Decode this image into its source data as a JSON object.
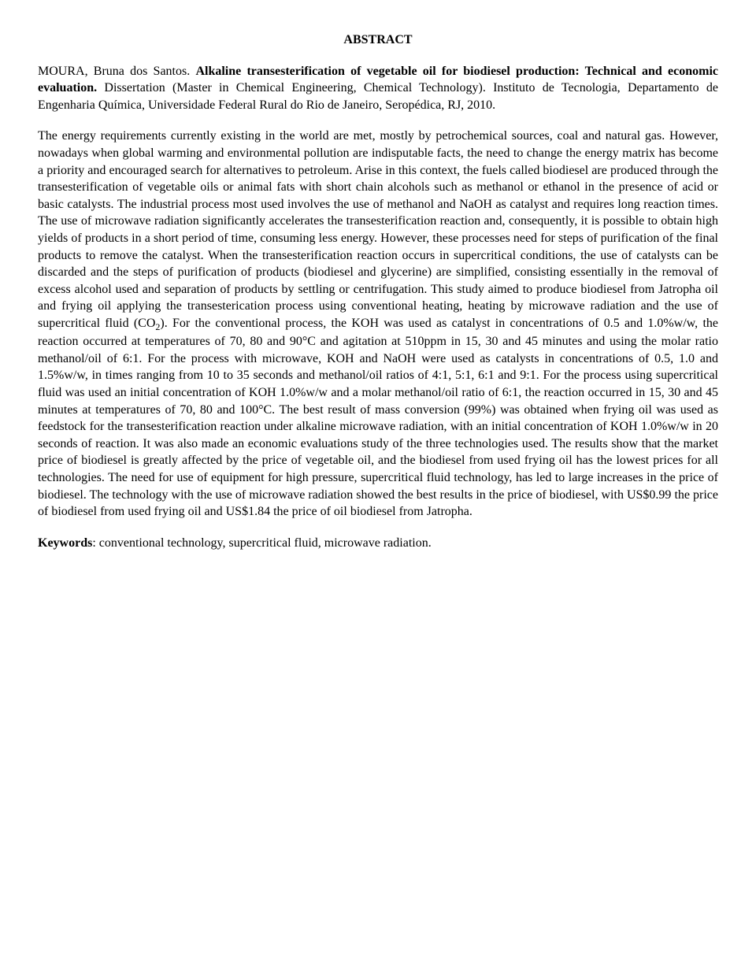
{
  "abstract": {
    "heading": "ABSTRACT",
    "citation_author": "MOURA, Bruna dos Santos. ",
    "citation_title": "Alkaline transesterification of vegetable oil for biodiesel production: Technical and economic evaluation. ",
    "citation_rest": "Dissertation (Master in Chemical Engineering, Chemical Technology). Instituto de Tecnologia, Departamento de Engenharia Química, Universidade Federal Rural do Rio de Janeiro, Seropédica, RJ, 2010.",
    "body_pre": "The energy requirements currently existing in the world are met, mostly by petrochemical sources, coal and natural gas. However, nowadays when global warming and environmental pollution are indisputable facts, the need to change the energy matrix has become a priority and encouraged search for alternatives to petroleum. Arise in this context, the fuels called biodiesel are produced through the transesterification of vegetable oils or animal fats with short chain alcohols such as methanol or ethanol in the presence of acid or basic catalysts. The industrial process most used involves the use of methanol and NaOH as catalyst and requires long reaction times. The use of microwave radiation significantly accelerates the transesterification reaction and, consequently, it is possible to obtain high yields of products in a short period of time, consuming less energy. However, these processes need for steps of purification of the final products to remove the catalyst. When the transesterification reaction occurs in supercritical conditions, the use of catalysts can be discarded and the steps of purification of products (biodiesel and glycerine) are simplified, consisting essentially in the removal of excess alcohol used and separation of products by settling or centrifugation. This study aimed to produce biodiesel from Jatropha oil and frying oil applying the transesterication process using conventional heating, heating by microwave radiation and the use of supercritical fluid (CO",
    "co2_sub": "2",
    "body_post": "). For the conventional process, the KOH was used as catalyst in concentrations of 0.5 and 1.0%w/w, the reaction occurred at temperatures of 70, 80 and 90°C and agitation at 510ppm in 15, 30 and 45 minutes and using the molar ratio methanol/oil of 6:1. For the process with microwave, KOH and NaOH were used as catalysts in concentrations of 0.5, 1.0 and 1.5%w/w, in times ranging from 10 to 35 seconds and methanol/oil ratios of 4:1, 5:1, 6:1 and 9:1. For the process using supercritical fluid was used an initial concentration of KOH 1.0%w/w and a molar methanol/oil ratio of 6:1, the reaction occurred in 15, 30 and 45 minutes at temperatures of 70, 80 and 100°C. The best result of mass conversion (99%) was obtained when frying oil was used as feedstock for the transesterification reaction under alkaline microwave radiation, with an initial concentration of KOH 1.0%w/w in 20 seconds of reaction. It was also made an economic evaluations study of the three technologies used. The results show that the market price of biodiesel is greatly affected by the price of vegetable oil, and the biodiesel from used frying oil has the lowest prices for all technologies. The need for use of equipment for high pressure, supercritical fluid technology, has led to large increases in the price of biodiesel. The technology with the use of microwave radiation showed the best results in the price of biodiesel, with US$0.99 the price of biodiesel from used frying oil and US$1.84 the price of oil biodiesel from Jatropha.",
    "keywords_label": "Keywords",
    "keywords_value": ": conventional technology, supercritical fluid, microwave radiation."
  }
}
